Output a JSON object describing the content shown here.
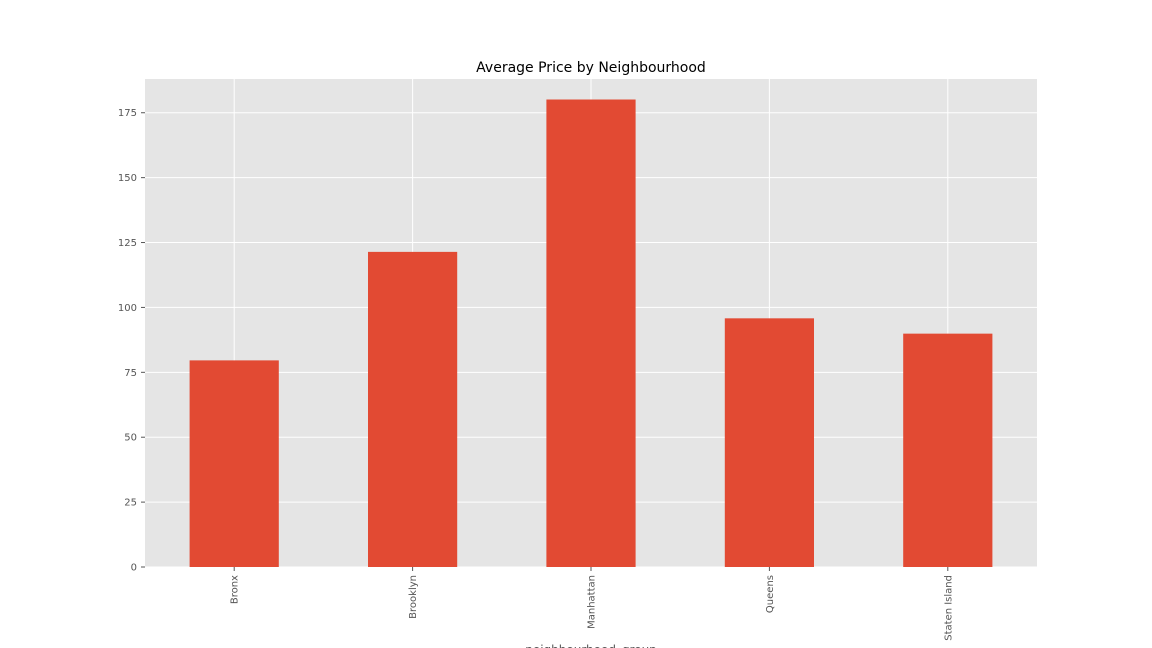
{
  "colors": {
    "figure_background": "#ffffff",
    "plot_background": "#e5e5e5",
    "grid": "#ffffff",
    "bar": "#e24a33",
    "tick_text": "#555555",
    "title_text": "#000000"
  },
  "chart_data": {
    "type": "bar",
    "title": "Average Price by Neighbourhood",
    "xlabel": "neighbourhood_group",
    "ylabel": "",
    "categories": [
      "Bronx",
      "Brooklyn",
      "Manhattan",
      "Queens",
      "Staten Island"
    ],
    "values": [
      79.6,
      121.4,
      180.1,
      95.8,
      89.9
    ],
    "ylim": [
      0,
      188
    ],
    "yticks": [
      0,
      25,
      50,
      75,
      100,
      125,
      150,
      175
    ],
    "grid": true,
    "legend": "none",
    "x_tick_rotation": "vertical"
  }
}
